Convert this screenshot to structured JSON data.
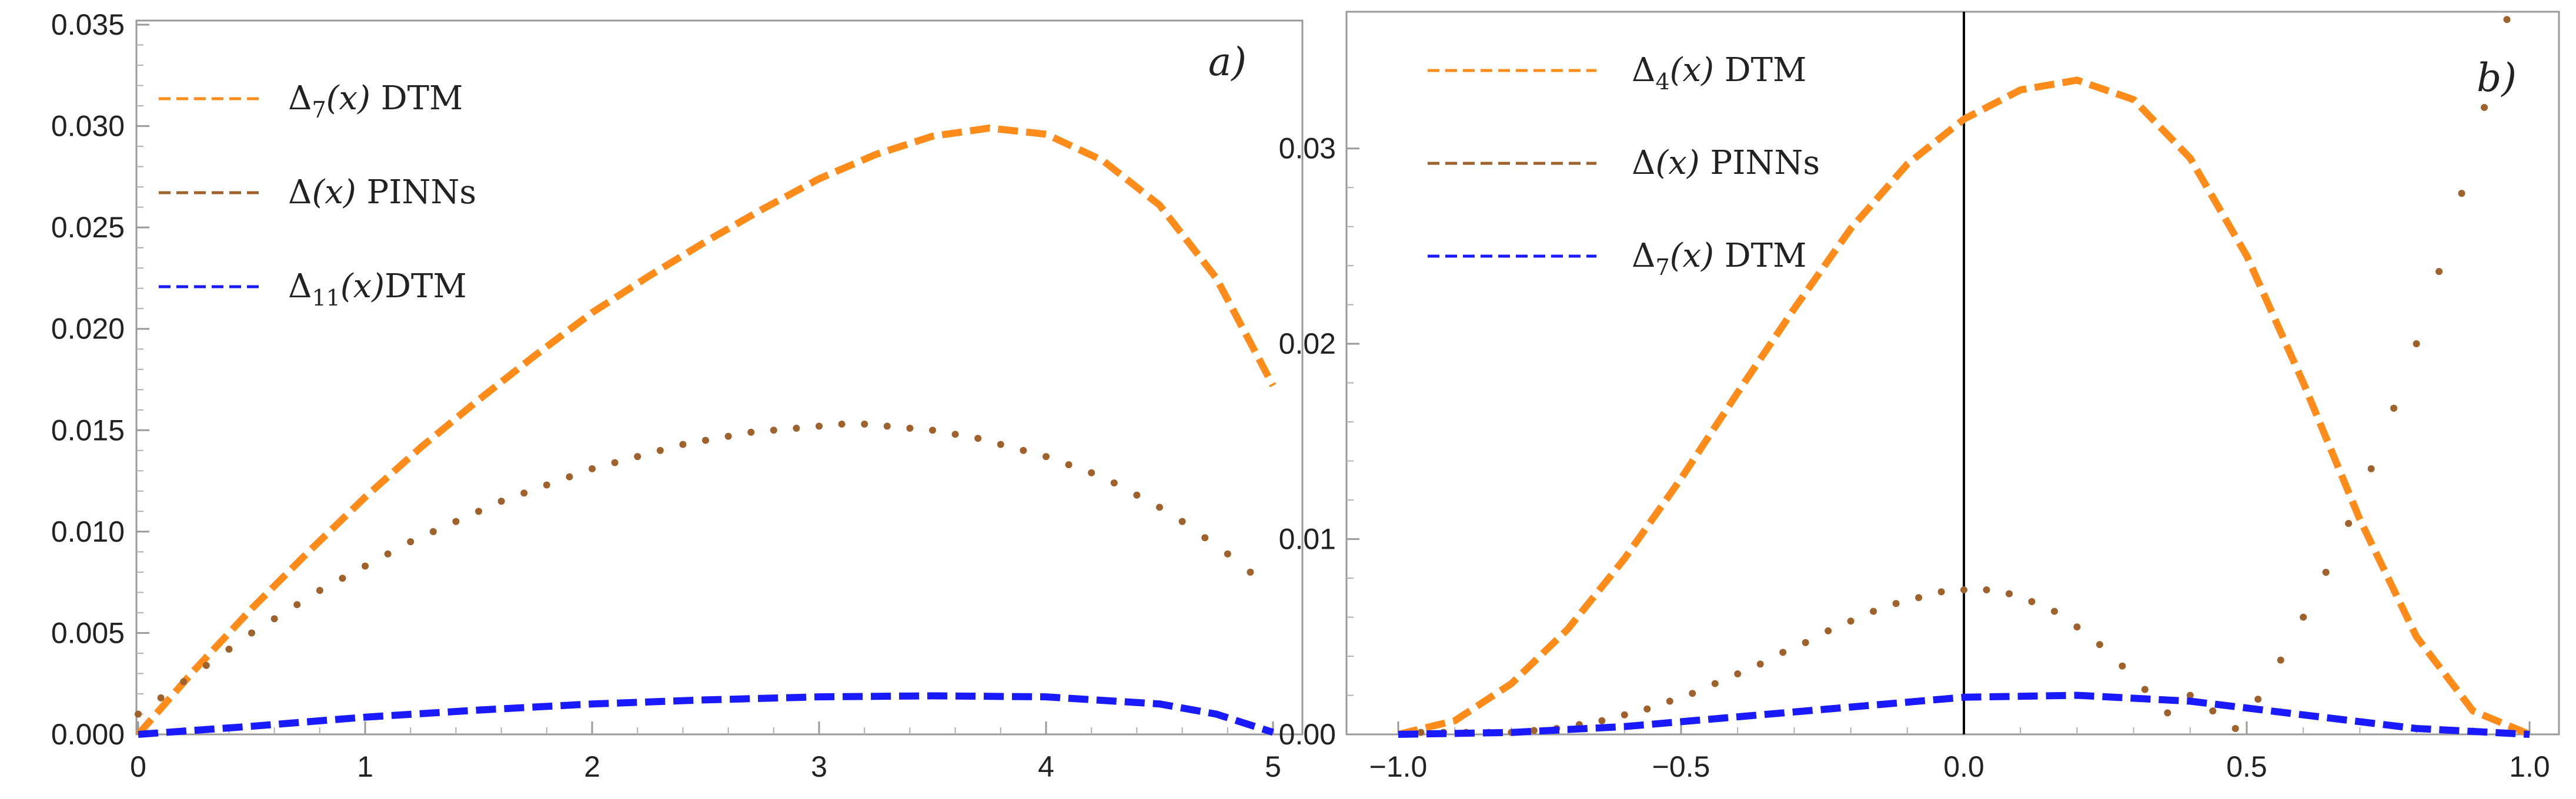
{
  "charts": [
    {
      "type": "line",
      "panel_label": "a)",
      "xlim": [
        0,
        5
      ],
      "ylim": [
        0,
        0.035
      ],
      "xticks": [
        0,
        1,
        2,
        3,
        4,
        5
      ],
      "xtick_labels": [
        "0",
        "1",
        "2",
        "3",
        "4",
        "5"
      ],
      "yticks": [
        0,
        0.005,
        0.01,
        0.015,
        0.02,
        0.025,
        0.03,
        0.035
      ],
      "ytick_labels": [
        "0.000",
        "0.005",
        "0.010",
        "0.015",
        "0.020",
        "0.025",
        "0.030",
        "0.035"
      ],
      "grid": false,
      "legend_position": "top-left",
      "series": [
        {
          "name": "Δ7(x) DTM",
          "legend": {
            "delta": "Δ",
            "sub": "7",
            "arg": "(x)",
            "suffix": " DTM"
          },
          "color": "#ff8c1a",
          "style": "dashed",
          "x": [
            0,
            0.25,
            0.5,
            0.75,
            1,
            1.25,
            1.5,
            1.75,
            2,
            2.25,
            2.5,
            2.75,
            3,
            3.25,
            3.5,
            3.75,
            4,
            4.25,
            4.5,
            4.75,
            5
          ],
          "y": [
            0,
            0.0032,
            0.0062,
            0.009,
            0.0117,
            0.0142,
            0.0165,
            0.0187,
            0.0208,
            0.0226,
            0.0243,
            0.0259,
            0.0274,
            0.0286,
            0.0295,
            0.0299,
            0.0296,
            0.0283,
            0.0261,
            0.0225,
            0.0172
          ]
        },
        {
          "name": "Δ(x) PINNs",
          "legend": {
            "delta": "Δ",
            "sub": "",
            "arg": "(x)",
            "suffix": "  PINNs"
          },
          "color": "#a0622d",
          "style": "dotted",
          "x": [
            0,
            0.1,
            0.2,
            0.3,
            0.4,
            0.5,
            0.6,
            0.7,
            0.8,
            0.9,
            1,
            1.1,
            1.2,
            1.3,
            1.4,
            1.5,
            1.6,
            1.7,
            1.8,
            1.9,
            2,
            2.1,
            2.2,
            2.3,
            2.4,
            2.5,
            2.6,
            2.7,
            2.8,
            2.9,
            3,
            3.1,
            3.2,
            3.3,
            3.4,
            3.5,
            3.6,
            3.7,
            3.8,
            3.9,
            4,
            4.1,
            4.2,
            4.3,
            4.4,
            4.5,
            4.6,
            4.7,
            4.8,
            4.9
          ],
          "y": [
            0.001,
            0.0018,
            0.0026,
            0.0034,
            0.0042,
            0.005,
            0.0057,
            0.0064,
            0.0071,
            0.0077,
            0.0083,
            0.0089,
            0.0095,
            0.01,
            0.0105,
            0.011,
            0.0115,
            0.0119,
            0.0123,
            0.0127,
            0.0131,
            0.0134,
            0.0137,
            0.014,
            0.0143,
            0.0145,
            0.0147,
            0.0149,
            0.015,
            0.0151,
            0.0152,
            0.0153,
            0.0153,
            0.0152,
            0.0151,
            0.015,
            0.0148,
            0.0146,
            0.0143,
            0.014,
            0.0137,
            0.0133,
            0.0129,
            0.0124,
            0.0118,
            0.0112,
            0.0105,
            0.0097,
            0.0089,
            0.008
          ]
        },
        {
          "name": "Δ11(x)DTM",
          "legend": {
            "delta": "Δ",
            "sub": "11",
            "arg": "(x)",
            "suffix": "DTM"
          },
          "color": "#1a1aff",
          "style": "dashed",
          "x": [
            0,
            0.5,
            1,
            1.5,
            2,
            2.5,
            3,
            3.5,
            4,
            4.5,
            4.75,
            5
          ],
          "y": [
            0,
            0.0004,
            0.00085,
            0.0012,
            0.0015,
            0.0017,
            0.00185,
            0.0019,
            0.00185,
            0.0015,
            0.001,
            0.0001
          ]
        }
      ]
    },
    {
      "type": "line",
      "panel_label": "b)",
      "xlim": [
        -1.0,
        1.0
      ],
      "ylim": [
        0,
        0.037
      ],
      "xticks": [
        -1.0,
        -0.5,
        0.0,
        0.5,
        1.0
      ],
      "xtick_labels": [
        "−1.0",
        "−0.5",
        "0.0",
        "0.5",
        "1.0"
      ],
      "yticks": [
        0,
        0.01,
        0.02,
        0.03
      ],
      "ytick_labels": [
        "0.00",
        "0.01",
        "0.02",
        "0.03"
      ],
      "grid": false,
      "vertical_line_at_x": 0,
      "legend_position": "top-left",
      "series": [
        {
          "name": "Δ4(x) DTM",
          "legend": {
            "delta": "Δ",
            "sub": "4",
            "arg": "(x)",
            "suffix": "  DTM"
          },
          "color": "#ff8c1a",
          "style": "dashed",
          "x": [
            -1.0,
            -0.9,
            -0.8,
            -0.7,
            -0.6,
            -0.5,
            -0.4,
            -0.3,
            -0.2,
            -0.1,
            0.0,
            0.1,
            0.2,
            0.3,
            0.4,
            0.5,
            0.6,
            0.7,
            0.8,
            0.9,
            1.0
          ],
          "y": [
            0.0,
            0.0007,
            0.0026,
            0.0054,
            0.009,
            0.0131,
            0.0175,
            0.0218,
            0.0259,
            0.0292,
            0.0315,
            0.033,
            0.0335,
            0.0325,
            0.0295,
            0.0245,
            0.018,
            0.011,
            0.005,
            0.0012,
            0.0
          ]
        },
        {
          "name": "Δ(x)  PINNs",
          "legend": {
            "delta": "Δ",
            "sub": "",
            "arg": "(x)",
            "suffix": "  PINNs"
          },
          "color": "#a0622d",
          "style": "dotted",
          "x": [
            -0.96,
            -0.92,
            -0.88,
            -0.84,
            -0.8,
            -0.76,
            -0.72,
            -0.68,
            -0.64,
            -0.6,
            -0.56,
            -0.52,
            -0.48,
            -0.44,
            -0.4,
            -0.36,
            -0.32,
            -0.28,
            -0.24,
            -0.2,
            -0.16,
            -0.12,
            -0.08,
            -0.04,
            0.0,
            0.04,
            0.08,
            0.12,
            0.16,
            0.2,
            0.24,
            0.28,
            0.32,
            0.36,
            0.4,
            0.44,
            0.48,
            0.52,
            0.56,
            0.6,
            0.64,
            0.68,
            0.72,
            0.76,
            0.8,
            0.84,
            0.88,
            0.92,
            0.96
          ],
          "y": [
            0.0001,
            0.0001,
            0.0001,
            0.0001,
            0.0001,
            0.0002,
            0.0003,
            0.0005,
            0.0007,
            0.001,
            0.0013,
            0.0017,
            0.0021,
            0.0026,
            0.0031,
            0.0036,
            0.0042,
            0.0047,
            0.0053,
            0.0058,
            0.0063,
            0.0067,
            0.007,
            0.0073,
            0.0074,
            0.0074,
            0.0072,
            0.0068,
            0.0063,
            0.0055,
            0.0046,
            0.0035,
            0.0023,
            0.0011,
            0.002,
            0.0012,
            0.0003,
            0.0018,
            0.0038,
            0.006,
            0.0083,
            0.0108,
            0.0136,
            0.0167,
            0.02,
            0.0237,
            0.0277,
            0.0321,
            0.0366
          ]
        },
        {
          "name": "Δ7(x) DTM",
          "legend": {
            "delta": "Δ",
            "sub": "7",
            "arg": "(x)",
            "suffix": "  DTM"
          },
          "color": "#1a1aff",
          "style": "dashed",
          "x": [
            -1.0,
            -0.8,
            -0.6,
            -0.4,
            -0.2,
            0.0,
            0.2,
            0.4,
            0.6,
            0.8,
            1.0
          ],
          "y": [
            0.0,
            0.0001,
            0.0004,
            0.0009,
            0.0014,
            0.0019,
            0.002,
            0.0017,
            0.001,
            0.0003,
            0.0
          ]
        }
      ]
    }
  ]
}
